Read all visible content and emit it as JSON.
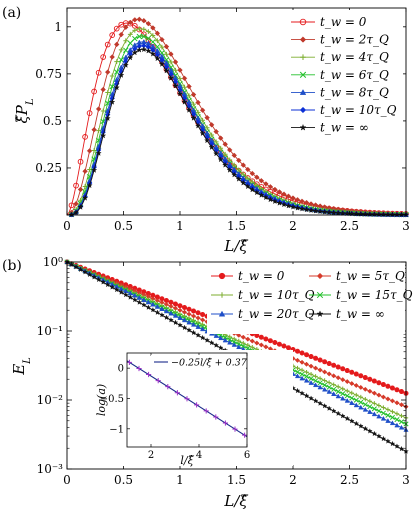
{
  "chart_data": [
    {
      "type": "line",
      "panel_label": "(a)",
      "xlabel": "L/ξ̂",
      "ylabel": "ξ̂P_L",
      "xlim": [
        0,
        3
      ],
      "ylim": [
        0,
        1.1
      ],
      "xticks": [
        "0",
        "0.5",
        "1",
        "1.5",
        "2",
        "2.5",
        "3"
      ],
      "xtick_values": [
        0,
        0.5,
        1,
        1.5,
        2,
        2.5,
        3
      ],
      "yticks": [
        "0.25",
        "0.5",
        "0.75",
        "1"
      ],
      "ytick_values": [
        0.25,
        0.5,
        0.75,
        1
      ],
      "legend_position": "top-right",
      "series": [
        {
          "name": "t_w = 0",
          "color": "#e41a1c",
          "marker": "circle-open",
          "peak": 1.02,
          "mode": 0.53,
          "k": 2.8
        },
        {
          "name": "t_w = 2τ_Q",
          "color": "#c0392b",
          "marker": "diamond",
          "peak": 1.04,
          "mode": 0.63,
          "k": 3.4
        },
        {
          "name": "t_w = 4τ_Q",
          "color": "#7cae2f",
          "marker": "plus",
          "peak": 0.99,
          "mode": 0.65,
          "k": 3.9
        },
        {
          "name": "t_w = 6τ_Q",
          "color": "#22c02a",
          "marker": "cross",
          "peak": 0.95,
          "mode": 0.66,
          "k": 4.1
        },
        {
          "name": "t_w = 8τ_Q",
          "color": "#1f4fc8",
          "marker": "triangle",
          "peak": 0.92,
          "mode": 0.67,
          "k": 4.2
        },
        {
          "name": "t_w = 10τ_Q",
          "color": "#0b2fd6",
          "marker": "diamond",
          "peak": 0.9,
          "mode": 0.67,
          "k": 4.3
        },
        {
          "name": "t_w = ∞",
          "color": "#111111",
          "marker": "star",
          "peak": 0.88,
          "mode": 0.67,
          "k": 4.4
        }
      ]
    },
    {
      "type": "line",
      "panel_label": "(b)",
      "xlabel": "L/ξ̂",
      "ylabel": "E_L",
      "xlim": [
        0,
        3
      ],
      "yscale": "log",
      "ylim": [
        0.001,
        1
      ],
      "xticks": [
        "0",
        "0.5",
        "1",
        "1.5",
        "2",
        "2.5",
        "3"
      ],
      "xtick_values": [
        0,
        0.5,
        1,
        1.5,
        2,
        2.5,
        3
      ],
      "yticks": [
        "10⁻³",
        "10⁻²",
        "10⁻¹",
        "10⁰"
      ],
      "ytick_values": [
        0.001,
        0.01,
        0.1,
        1
      ],
      "legend_position": "top-right",
      "series": [
        {
          "name": "t_w = 0",
          "color": "#e41a1c",
          "marker": "circle",
          "y_at_3": 0.0125
        },
        {
          "name": "t_w = 5τ_Q",
          "color": "#d63a2a",
          "marker": "diamond",
          "y_at_3": 0.008
        },
        {
          "name": "t_w = 10τ_Q",
          "color": "#7cae2f",
          "marker": "plus",
          "y_at_3": 0.0055
        },
        {
          "name": "t_w = 15τ_Q",
          "color": "#22c02a",
          "marker": "cross",
          "y_at_3": 0.0045
        },
        {
          "name": "t_w = 20τ_Q",
          "color": "#1f4fc8",
          "marker": "triangle",
          "y_at_3": 0.0037
        },
        {
          "name": "t_w = ∞",
          "color": "#111111",
          "marker": "star",
          "y_at_3": 0.0018
        }
      ],
      "inset": {
        "xlabel": "l/ξ̂",
        "ylabel": "log(a)",
        "xlim": [
          1,
          6
        ],
        "ylim": [
          -1.3,
          0.25
        ],
        "xticks": [
          "2",
          "4",
          "6"
        ],
        "xtick_values": [
          2,
          4,
          6
        ],
        "yticks": [
          "0",
          "−0.5",
          "−1"
        ],
        "ytick_values": [
          0,
          -0.5,
          -1
        ],
        "fit_label": "−0.25l/ξ̂ + 0.37",
        "fit_slope": -0.25,
        "fit_intercept": 0.37,
        "points_x": [
          1.1,
          1.5,
          1.9,
          2.3,
          2.7,
          3.1,
          3.5,
          3.9,
          4.3,
          4.7,
          5.1,
          5.5,
          5.9
        ],
        "point_color": "#9b30c8",
        "line_color": "#1a2a8a"
      }
    }
  ]
}
